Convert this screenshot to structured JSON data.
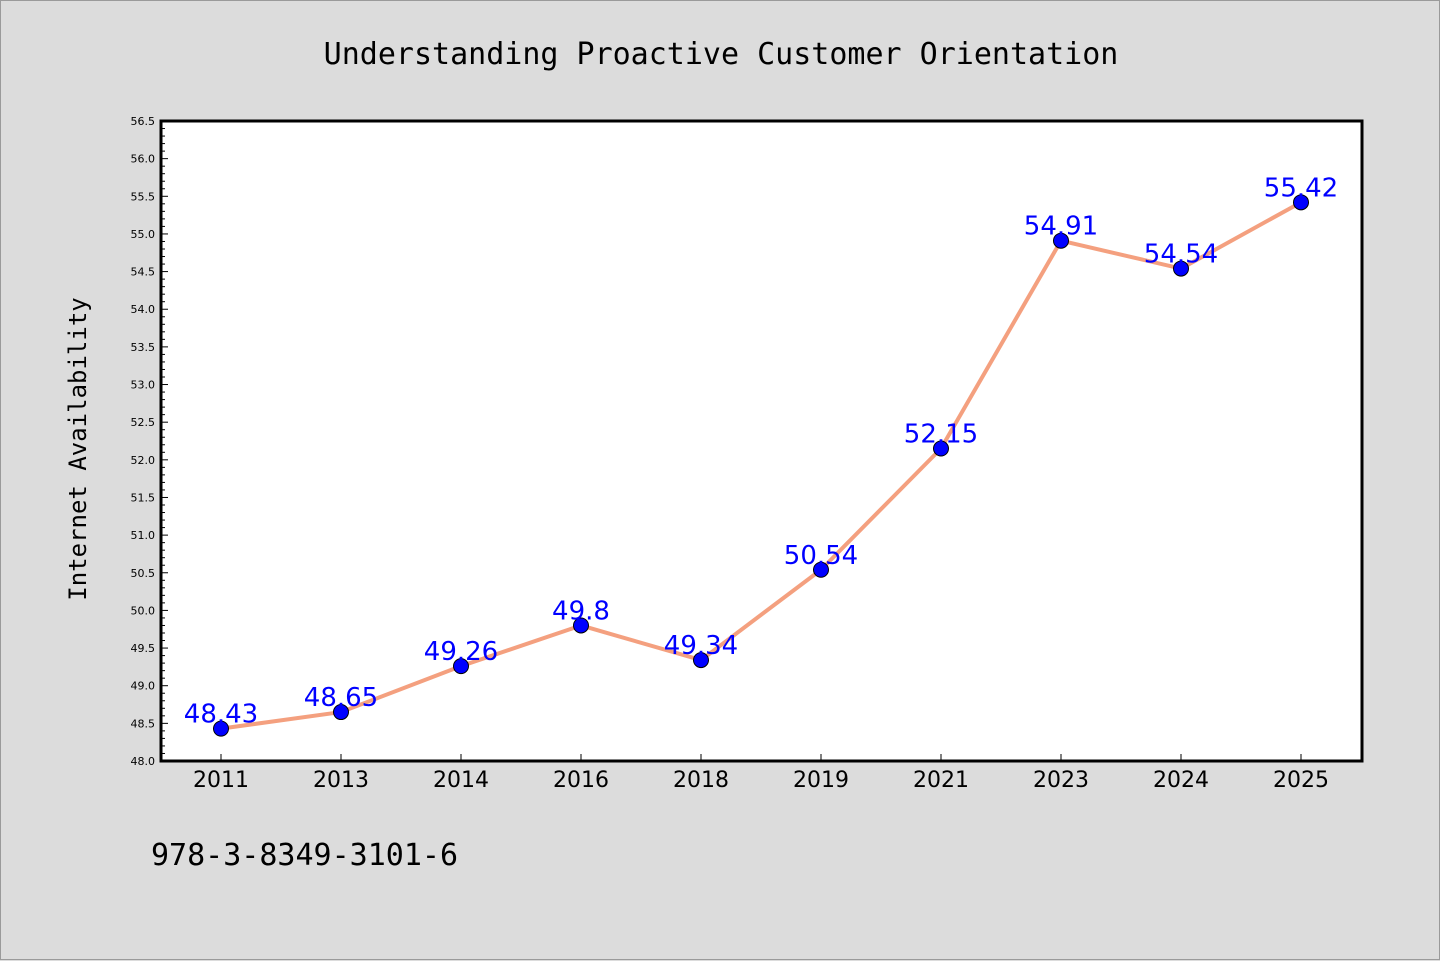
{
  "chart_data": {
    "type": "line",
    "title": "Understanding Proactive Customer Orientation",
    "xlabel": "",
    "ylabel": "Internet Availability",
    "categories": [
      "2011",
      "2013",
      "2014",
      "2016",
      "2018",
      "2019",
      "2021",
      "2023",
      "2024",
      "2025"
    ],
    "series": [
      {
        "values": [
          48.43,
          48.65,
          49.26,
          49.8,
          49.34,
          50.54,
          52.15,
          54.91,
          54.54,
          55.42
        ],
        "labels": [
          "48.43",
          "48.65",
          "49.26",
          "49.8",
          "49.34",
          "50.54",
          "52.15",
          "54.91",
          "54.54",
          "55.42"
        ]
      }
    ],
    "ylim": [
      48.0,
      56.5
    ],
    "yticks": [
      "48.0",
      "48.5",
      "49.0",
      "49.5",
      "50.0",
      "50.5",
      "51.0",
      "51.5",
      "52.0",
      "52.5",
      "53.0",
      "53.5",
      "54.0",
      "54.5",
      "55.0",
      "55.5",
      "56.0",
      "56.5"
    ],
    "grid": false,
    "legend": "none",
    "colors": {
      "line": "#f4a07f",
      "marker": "#0000ff",
      "data_label": "#0000ff",
      "background": "#dcdcdc",
      "plot_background": "#ffffff"
    }
  },
  "footer": {
    "isbn": "978-3-8349-3101-6"
  }
}
